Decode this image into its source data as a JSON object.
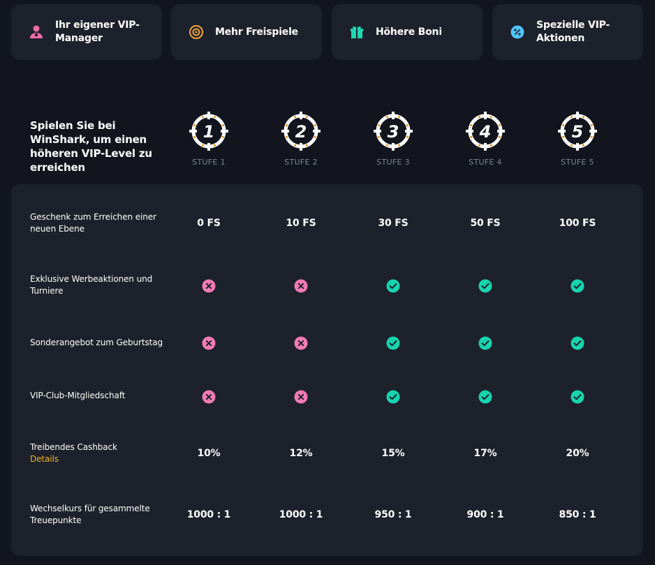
{
  "benefits": [
    {
      "label": "Ihr eigener VIP-Manager",
      "icon": "manager-icon",
      "color": "#f06aa8"
    },
    {
      "label": "Mehr Freispiele",
      "icon": "target-icon",
      "color": "#f2a43a"
    },
    {
      "label": "Höhere Boni",
      "icon": "gift-icon",
      "color": "#1fd6b0"
    },
    {
      "label": "Spezielle VIP-Aktionen",
      "icon": "percent-icon",
      "color": "#4fc3f7"
    }
  ],
  "intro_text": "Spielen Sie bei WinShark, um einen höheren VIP-Level zu erreichen",
  "levels": [
    {
      "number": "1",
      "label": "STUFE 1"
    },
    {
      "number": "2",
      "label": "STUFE 2"
    },
    {
      "number": "3",
      "label": "STUFE 3"
    },
    {
      "number": "4",
      "label": "STUFE 4"
    },
    {
      "number": "5",
      "label": "STUFE 5"
    }
  ],
  "rows": [
    {
      "label": "Geschenk zum Erreichen einer neuen Ebene",
      "type": "text",
      "values": [
        "0 FS",
        "10 FS",
        "30 FS",
        "50 FS",
        "100 FS"
      ]
    },
    {
      "label": "Exklusive Werbeaktionen und Turniere",
      "type": "icon",
      "values": [
        false,
        false,
        true,
        true,
        true
      ]
    },
    {
      "label": "Sonderangebot zum Geburtstag",
      "type": "icon",
      "values": [
        false,
        false,
        true,
        true,
        true
      ]
    },
    {
      "label": "VIP-Club-Mitgliedschaft",
      "type": "icon",
      "values": [
        false,
        false,
        true,
        true,
        true
      ]
    },
    {
      "label": "Treibendes Cashback",
      "link": "Details",
      "type": "text",
      "values": [
        "10%",
        "12%",
        "15%",
        "17%",
        "20%"
      ]
    },
    {
      "label": "Wechselkurs für gesammelte Treuepunkte",
      "type": "text",
      "values": [
        "1000 : 1",
        "1000 : 1",
        "950 : 1",
        "900 : 1",
        "850 : 1"
      ]
    }
  ],
  "colors": {
    "check": "#17d4ae",
    "cross": "#f27bb5",
    "accent": "#f2b233",
    "target_dots": "#e0962a"
  }
}
